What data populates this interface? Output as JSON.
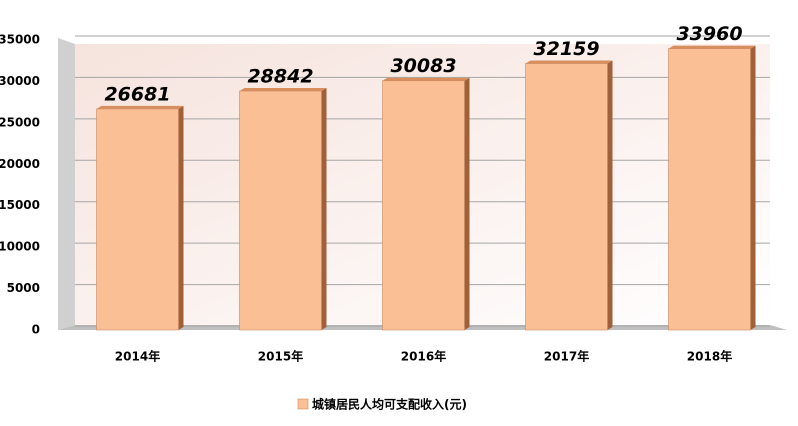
{
  "chart_data": {
    "type": "bar",
    "categories": [
      "2014年",
      "2015年",
      "2016年",
      "2017年",
      "2018年"
    ],
    "series": [
      {
        "name": "城镇居民人均可支配收入(元)",
        "color": "#fbbf96",
        "values": [
          26681,
          28842,
          30083,
          32159,
          33960
        ]
      }
    ],
    "ylim": [
      0,
      35000
    ],
    "yticks": [
      0,
      5000,
      10000,
      15000,
      20000,
      25000,
      30000,
      35000
    ],
    "grid": true,
    "legend": "bottom"
  }
}
